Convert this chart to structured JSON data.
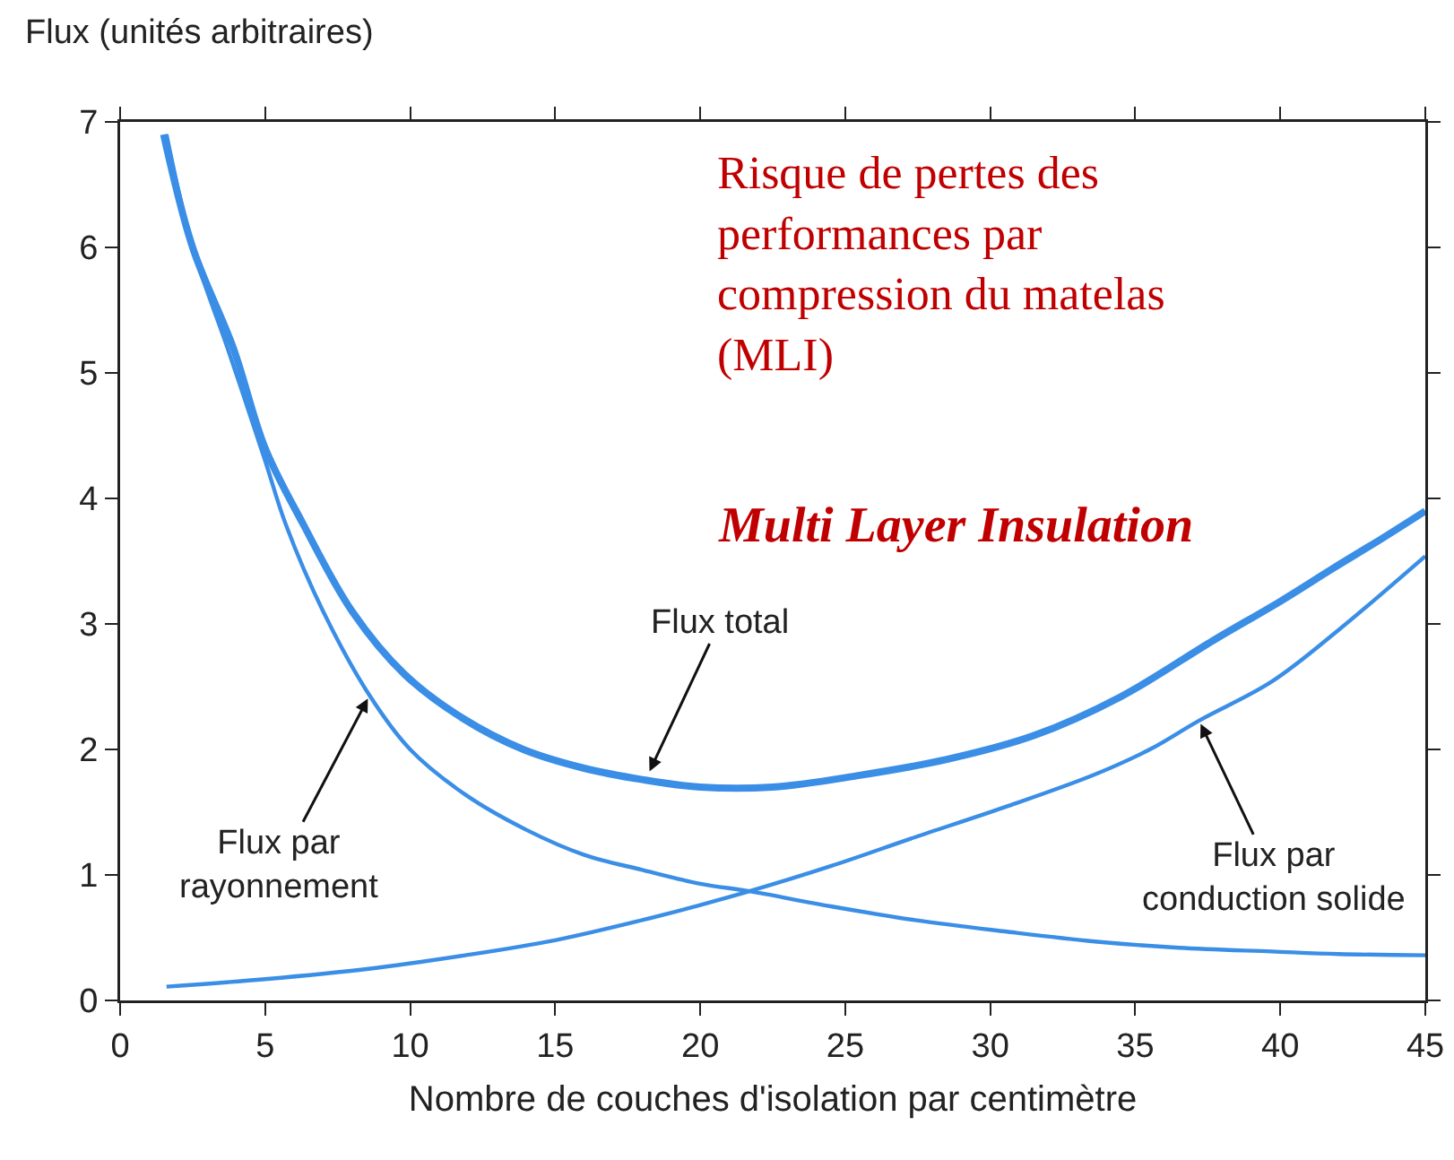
{
  "chart_data": {
    "type": "line",
    "xlabel": "Nombre de couches d'isolation par centimètre",
    "ylabel": "Flux (unités arbitraires)",
    "xlim": [
      0,
      45
    ],
    "xticks": [
      0,
      5,
      10,
      15,
      20,
      25,
      30,
      35,
      40,
      45
    ],
    "ylim": [
      0,
      7
    ],
    "yticks": [
      0,
      1,
      2,
      3,
      4,
      5,
      6,
      7
    ],
    "grid": false,
    "marker": "none",
    "line_style": "solid",
    "series": [
      {
        "color": "#3a8ee6",
        "x": [
          1.5,
          2.5,
          3.9,
          5,
          6.3,
          8,
          9.8,
          11.8,
          13.9,
          16,
          18,
          20,
          22.5,
          25.4,
          28.5,
          31.5,
          34.5,
          37.7,
          40,
          41.8,
          43.5,
          45
        ],
        "values": [
          6.9,
          6.0,
          5.2,
          4.4,
          3.8,
          3.1,
          2.6,
          2.25,
          2.0,
          1.85,
          1.76,
          1.7,
          1.7,
          1.79,
          1.92,
          2.11,
          2.42,
          2.87,
          3.18,
          3.44,
          3.68,
          3.9
        ]
      },
      {
        "color": "#3a8ee6",
        "x": [
          1.6,
          2.5,
          3.7,
          5,
          5.7,
          7,
          8.6,
          10,
          11.9,
          14,
          16,
          18,
          20,
          21.7,
          24.5,
          27.4,
          30.5,
          33.6,
          36.5,
          39.7,
          42,
          45
        ],
        "values": [
          6.9,
          6.0,
          5.2,
          4.3,
          3.8,
          3.1,
          2.43,
          2.0,
          1.64,
          1.36,
          1.16,
          1.04,
          0.93,
          0.87,
          0.75,
          0.64,
          0.55,
          0.47,
          0.42,
          0.39,
          0.37,
          0.36
        ]
      },
      {
        "color": "#3a8ee6",
        "x": [
          1.6,
          5,
          8.5,
          11.9,
          15,
          18,
          20,
          21.7,
          24.5,
          27.4,
          30.5,
          33.6,
          35.5,
          37.2,
          39.7,
          42,
          45
        ],
        "values": [
          0.11,
          0.17,
          0.25,
          0.36,
          0.48,
          0.64,
          0.76,
          0.87,
          1.07,
          1.3,
          1.54,
          1.8,
          2.0,
          2.23,
          2.54,
          2.95,
          3.54
        ]
      }
    ],
    "annotations": [
      {
        "text": "Flux total",
        "x": 18.2,
        "y": 1.8
      },
      {
        "text": "Flux par\nrayonnement",
        "x": 8.6,
        "y": 2.43
      },
      {
        "text": "Flux par\nconduction solide",
        "x": 37.2,
        "y": 2.23
      },
      "Risque de pertes des\nperformances par\ncompression du matelas\n(MLI)",
      "Multi Layer Insulation"
    ]
  }
}
